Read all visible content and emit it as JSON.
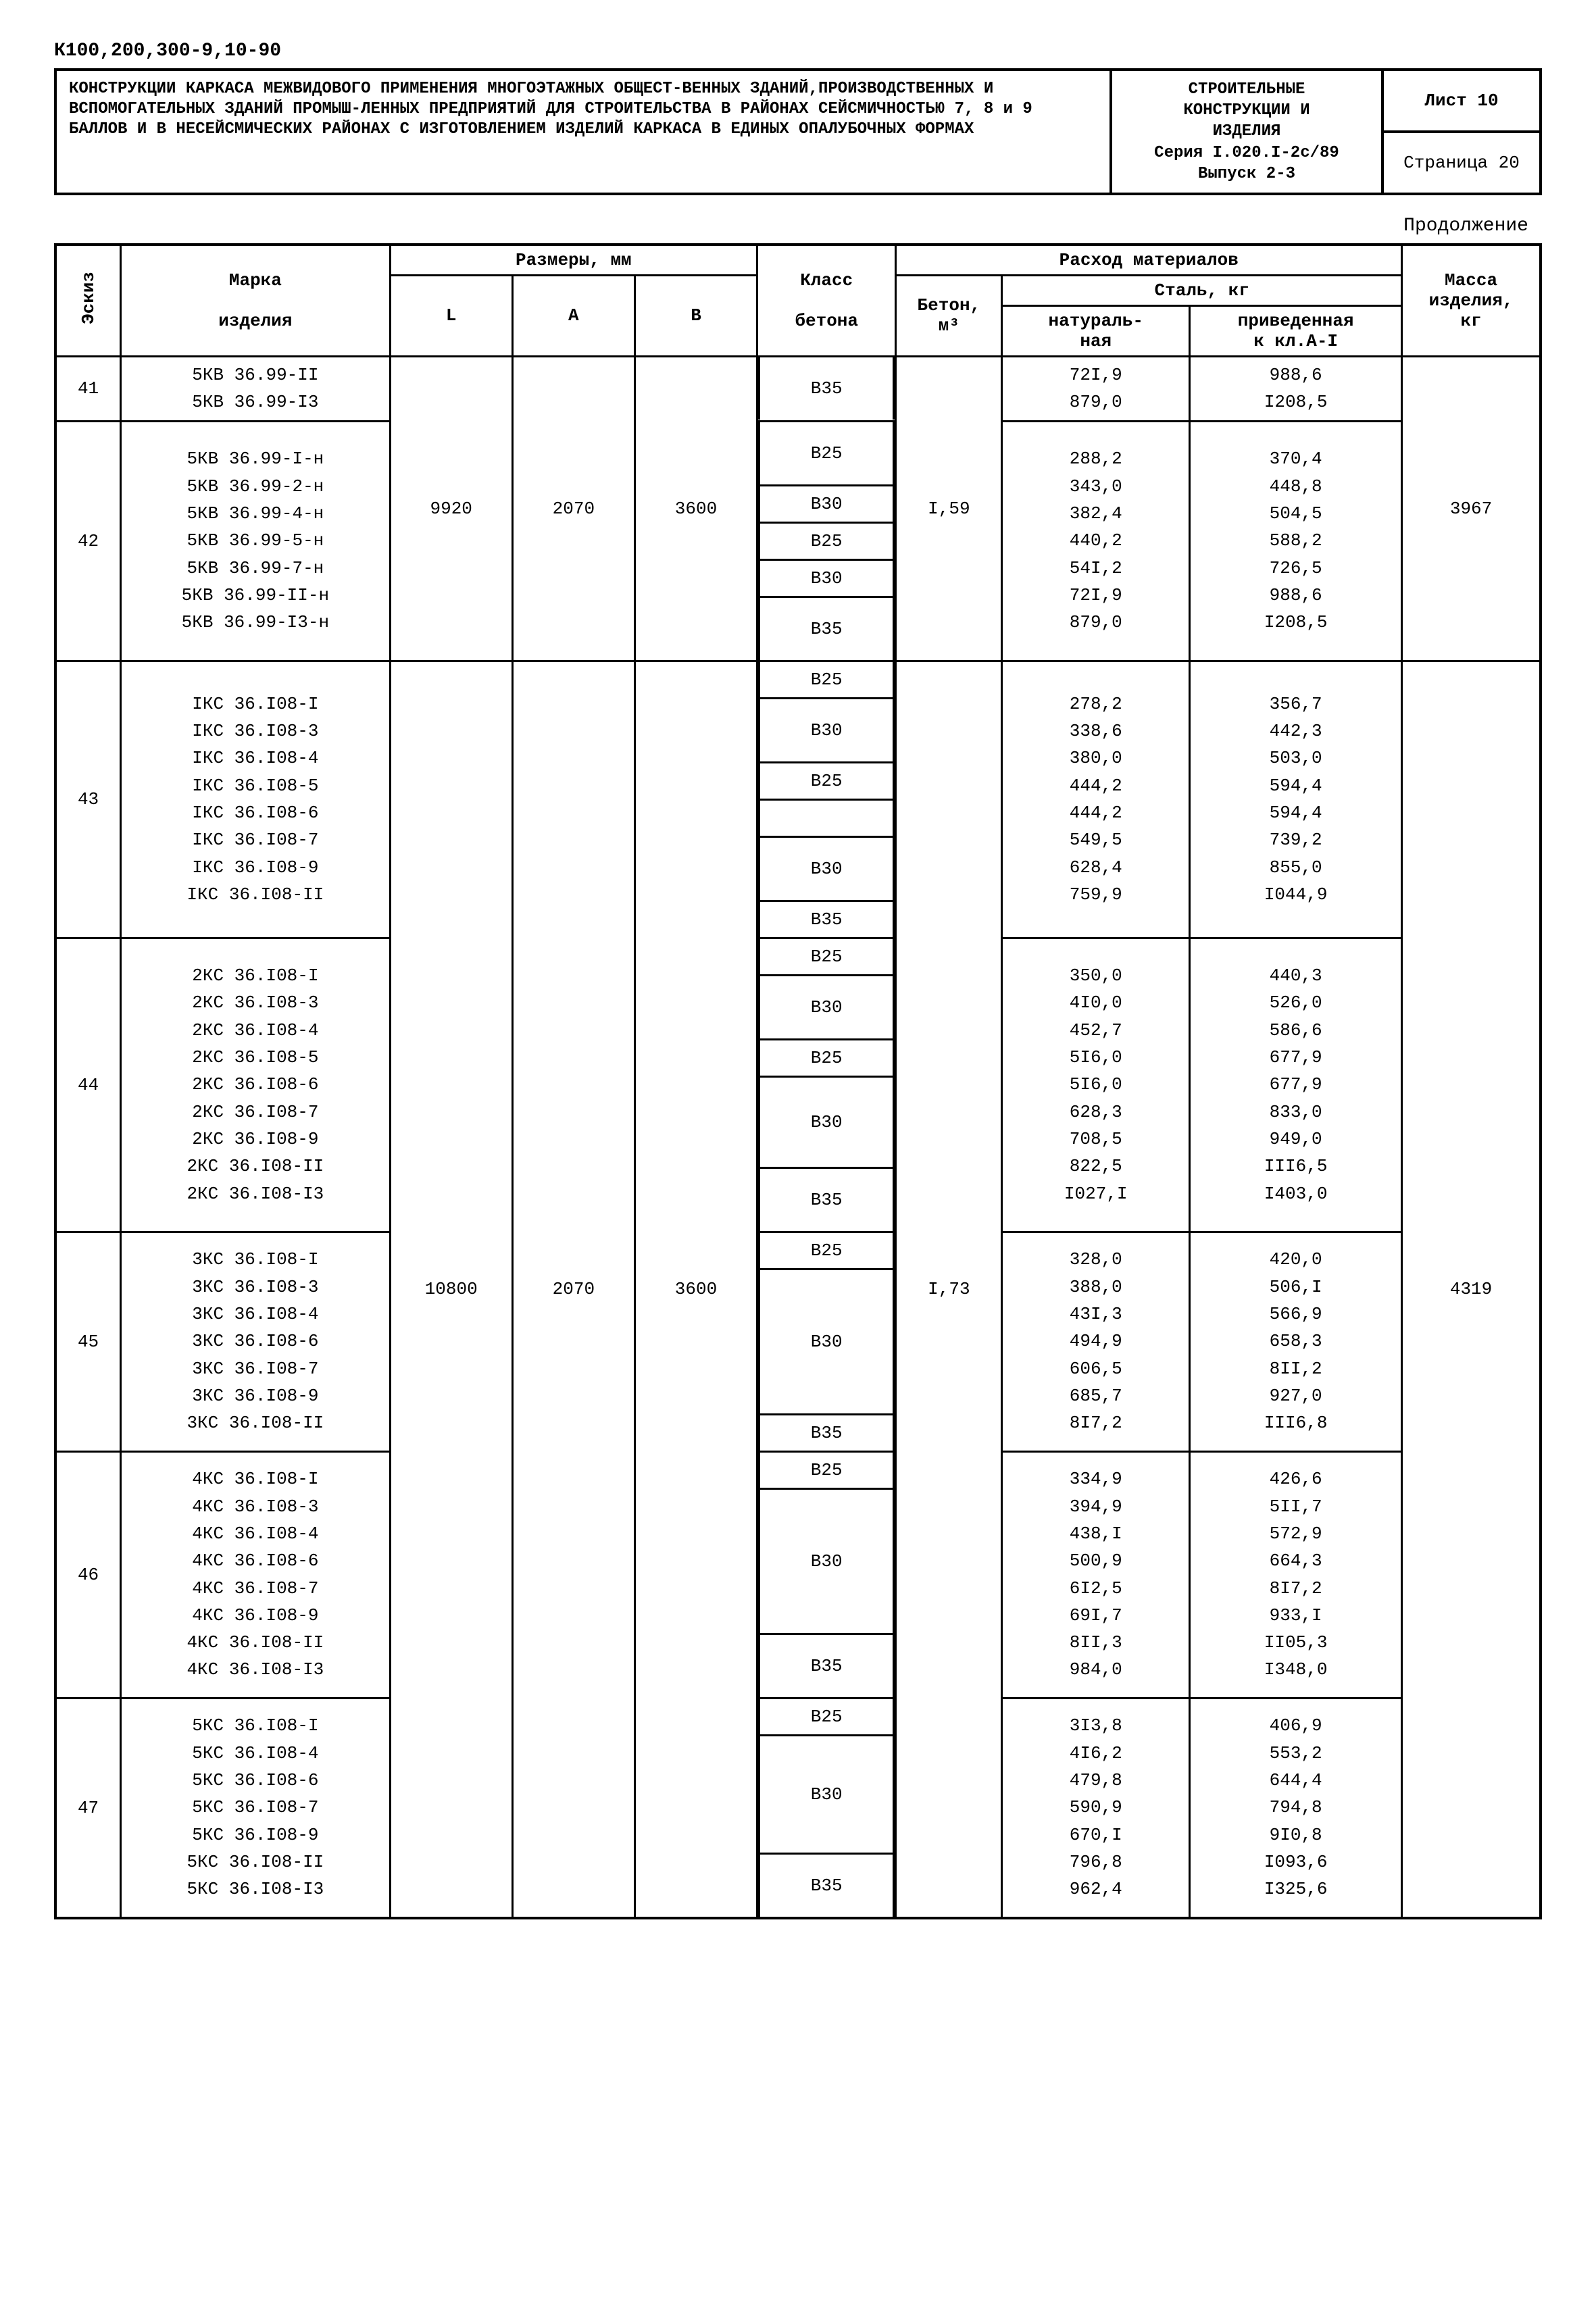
{
  "doc_code": "К100,200,300-9,10-90",
  "title_block": {
    "left": "КОНСТРУКЦИИ КАРКАСА МЕЖВИДОВОГО ПРИМЕНЕНИЯ МНОГОЭТАЖНЫХ ОБЩЕСТ-ВЕННЫХ ЗДАНИЙ,ПРОИЗВОДСТВЕННЫХ И ВСПОМОГАТЕЛЬНЫХ ЗДАНИЙ ПРОМЫШ-ЛЕННЫХ ПРЕДПРИЯТИЙ ДЛЯ СТРОИТЕЛЬСТВА В РАЙОНАХ СЕЙСМИЧНОСТЬЮ 7, 8 и 9 БАЛЛОВ И В НЕСЕЙСМИЧЕСКИХ РАЙОНАХ С ИЗГОТОВЛЕНИЕМ ИЗДЕЛИЙ КАРКАСА В ЕДИНЫХ ОПАЛУБОЧНЫХ ФОРМАХ",
    "mid_l1": "СТРОИТЕЛЬНЫЕ",
    "mid_l2": "КОНСТРУКЦИИ И",
    "mid_l3": "ИЗДЕЛИЯ",
    "mid_l4": "Серия I.020.I-2с/89",
    "mid_l5": "Выпуск 2-3",
    "sheet": "Лист 10",
    "page": "Страница 20"
  },
  "continuation": "Продолжение",
  "headers": {
    "eskiz": "Эскиз",
    "marka": "Марка",
    "izdel": "изделия",
    "razm": "Размеры, мм",
    "L": "L",
    "A": "A",
    "B": "B",
    "klass": "Класс",
    "betona": "бетона",
    "rashod": "Расход материалов",
    "beton": "Бетон,",
    "m3": "м³",
    "stal": "Сталь, кг",
    "natur": "натураль-",
    "naya": "ная",
    "priv": "приведенная",
    "kkl": "к кл.A-I",
    "massa": "Масса",
    "massa2": "изделия,",
    "kg": "кг"
  },
  "shared_42": {
    "L": "9920",
    "A": "2070",
    "B": "3600",
    "beton": "I,59",
    "mass": "3967"
  },
  "shared_43_47": {
    "L": "10800",
    "A": "2070",
    "B": "3600",
    "beton": "I,73",
    "mass": "4319"
  },
  "g41": {
    "id": "41",
    "marks": [
      "5КВ 36.99-II",
      "5КВ 36.99-I3"
    ],
    "klass": [
      {
        "t": "В35",
        "h": 2
      }
    ],
    "nat": [
      "72I,9",
      "879,0"
    ],
    "pri": [
      "988,6",
      "I208,5"
    ]
  },
  "g42": {
    "id": "42",
    "marks": [
      "5КВ 36.99-I-н",
      "5КВ 36.99-2-н",
      "5КВ 36.99-4-н",
      "5КВ 36.99-5-н",
      "5КВ 36.99-7-н",
      "5КВ 36.99-II-н",
      "5КВ 36.99-I3-н"
    ],
    "klass": [
      {
        "t": "В25",
        "h": 2
      },
      {
        "t": "В30",
        "h": 1
      },
      {
        "t": "В25",
        "h": 1
      },
      {
        "t": "В30",
        "h": 1
      },
      {
        "t": "В35",
        "h": 2
      }
    ],
    "nat": [
      "288,2",
      "343,0",
      "382,4",
      "440,2",
      "54I,2",
      "72I,9",
      "879,0"
    ],
    "pri": [
      "370,4",
      "448,8",
      "504,5",
      "588,2",
      "726,5",
      "988,6",
      "I208,5"
    ]
  },
  "g43": {
    "id": "43",
    "marks": [
      "IКС 36.I08-I",
      "IКС 36.I08-3",
      "IКС 36.I08-4",
      "IКС 36.I08-5",
      "IКС 36.I08-6",
      "IКС 36.I08-7",
      "IКС 36.I08-9",
      "IКС 36.I08-II"
    ],
    "klass": [
      {
        "t": "В25",
        "h": 1
      },
      {
        "t": "В30",
        "h": 2
      },
      {
        "t": "В25",
        "h": 1
      },
      {
        "t": "",
        "h": 1
      },
      {
        "t": "В30",
        "h": 2
      },
      {
        "t": "В35",
        "h": 1
      }
    ],
    "nat": [
      "278,2",
      "338,6",
      "380,0",
      "444,2",
      "444,2",
      "549,5",
      "628,4",
      "759,9"
    ],
    "pri": [
      "356,7",
      "442,3",
      "503,0",
      "594,4",
      "594,4",
      "739,2",
      "855,0",
      "I044,9"
    ]
  },
  "g44": {
    "id": "44",
    "marks": [
      "2КС 36.I08-I",
      "2КС 36.I08-3",
      "2КС 36.I08-4",
      "2КС 36.I08-5",
      "2КС 36.I08-6",
      "2КС 36.I08-7",
      "2КС 36.I08-9",
      "2КС 36.I08-II",
      "2КС 36.I08-I3"
    ],
    "klass": [
      {
        "t": "В25",
        "h": 1
      },
      {
        "t": "В30",
        "h": 2
      },
      {
        "t": "В25",
        "h": 1
      },
      {
        "t": "В30",
        "h": 3
      },
      {
        "t": "В35",
        "h": 2
      }
    ],
    "nat": [
      "350,0",
      "4I0,0",
      "452,7",
      "5I6,0",
      "5I6,0",
      "628,3",
      "708,5",
      "822,5",
      "I027,I"
    ],
    "pri": [
      "440,3",
      "526,0",
      "586,6",
      "677,9",
      "677,9",
      "833,0",
      "949,0",
      "III6,5",
      "I403,0"
    ]
  },
  "g45": {
    "id": "45",
    "marks": [
      "3КС 36.I08-I",
      "3КС 36.I08-3",
      "3КС 36.I08-4",
      "3КС 36.I08-6",
      "3КС 36.I08-7",
      "3КС 36.I08-9",
      "3КС 36.I08-II"
    ],
    "klass": [
      {
        "t": "В25",
        "h": 1
      },
      {
        "t": "В30",
        "h": 5
      },
      {
        "t": "В35",
        "h": 1
      }
    ],
    "nat": [
      "328,0",
      "388,0",
      "43I,3",
      "494,9",
      "606,5",
      "685,7",
      "8I7,2"
    ],
    "pri": [
      "420,0",
      "506,I",
      "566,9",
      "658,3",
      "8II,2",
      "927,0",
      "III6,8"
    ]
  },
  "g46": {
    "id": "46",
    "marks": [
      "4КС 36.I08-I",
      "4КС 36.I08-3",
      "4КС 36.I08-4",
      "4КС 36.I08-6",
      "4КС 36.I08-7",
      "4КС 36.I08-9",
      "4КС 36.I08-II",
      "4КС 36.I08-I3"
    ],
    "klass": [
      {
        "t": "В25",
        "h": 1
      },
      {
        "t": "В30",
        "h": 5
      },
      {
        "t": "В35",
        "h": 2
      }
    ],
    "nat": [
      "334,9",
      "394,9",
      "438,I",
      "500,9",
      "6I2,5",
      "69I,7",
      "8II,3",
      "984,0"
    ],
    "pri": [
      "426,6",
      "5II,7",
      "572,9",
      "664,3",
      "8I7,2",
      "933,I",
      "II05,3",
      "I348,0"
    ]
  },
  "g47": {
    "id": "47",
    "marks": [
      "5КС 36.I08-I",
      "5КС 36.I08-4",
      "5КС 36.I08-6",
      "5КС 36.I08-7",
      "5КС 36.I08-9",
      "5КС 36.I08-II",
      "5КС 36.I08-I3"
    ],
    "klass": [
      {
        "t": "В25",
        "h": 1
      },
      {
        "t": "В30",
        "h": 4
      },
      {
        "t": "В35",
        "h": 2
      }
    ],
    "nat": [
      "3I3,8",
      "4I6,2",
      "479,8",
      "590,9",
      "670,I",
      "796,8",
      "962,4"
    ],
    "pri": [
      "406,9",
      "553,2",
      "644,4",
      "794,8",
      "9I0,8",
      "I093,6",
      "I325,6"
    ]
  }
}
